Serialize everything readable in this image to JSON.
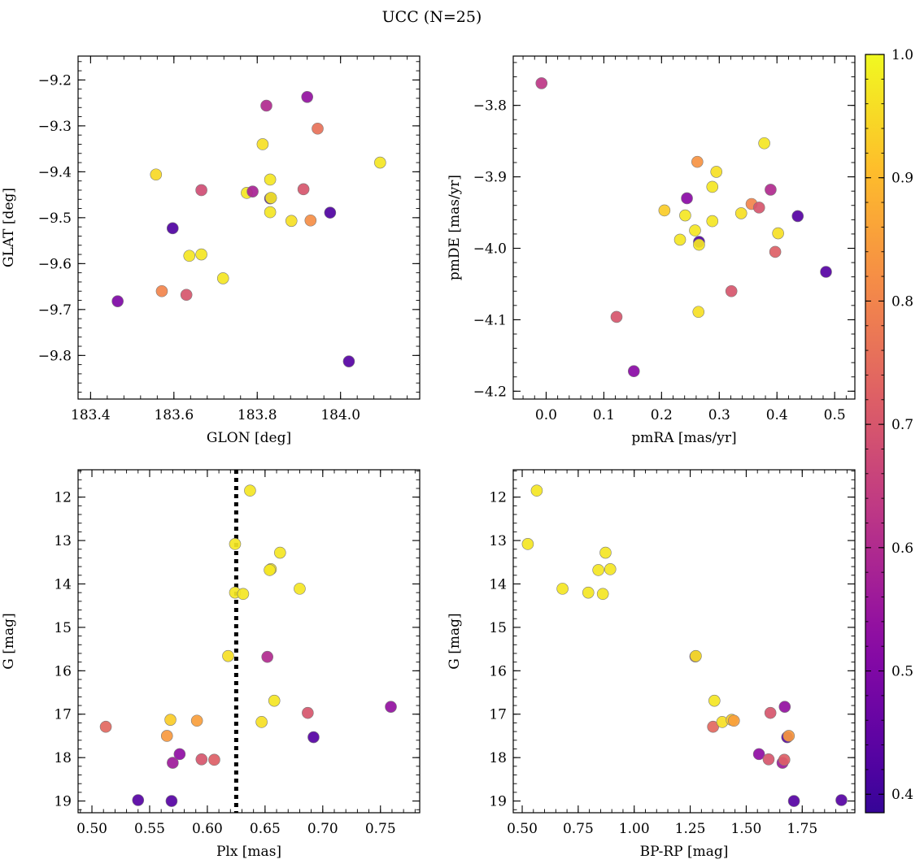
{
  "figure": {
    "title": "UCC (N=25)"
  },
  "colorbar": {
    "range": [
      0.385,
      1.0
    ],
    "ticks": [
      0.4,
      0.5,
      0.6,
      0.7,
      0.8,
      0.9,
      1.0
    ],
    "tick_labels": [
      "0.4",
      "0.5",
      "0.6",
      "0.7",
      "0.8",
      "0.9",
      "1.0"
    ],
    "colormap": "plasma"
  },
  "chart_data": [
    {
      "type": "scatter",
      "id": "glon-glat",
      "xlabel": "GLON [deg]",
      "ylabel": "GLAT [deg]",
      "xlim": [
        183.37,
        184.19
      ],
      "ylim": [
        -9.895,
        -9.148
      ],
      "xticks": [
        183.4,
        183.6,
        183.8,
        184.0
      ],
      "xtick_labels": [
        "183.4",
        "183.6",
        "183.8",
        "184.0"
      ],
      "yticks": [
        -9.2,
        -9.3,
        -9.4,
        -9.5,
        -9.6,
        -9.7,
        -9.8
      ],
      "ytick_labels": [
        "−9.2",
        "−9.3",
        "−9.4",
        "−9.5",
        "−9.6",
        "−9.7",
        "−9.8"
      ],
      "points": [
        {
          "x": 183.465,
          "y": -9.682,
          "c": 0.5
        },
        {
          "x": 183.557,
          "y": -9.406,
          "c": 0.95
        },
        {
          "x": 183.571,
          "y": -9.66,
          "c": 0.8
        },
        {
          "x": 183.597,
          "y": -9.523,
          "c": 0.42
        },
        {
          "x": 183.63,
          "y": -9.668,
          "c": 0.7
        },
        {
          "x": 183.637,
          "y": -9.583,
          "c": 0.97
        },
        {
          "x": 183.666,
          "y": -9.44,
          "c": 0.68
        },
        {
          "x": 183.666,
          "y": -9.58,
          "c": 0.97
        },
        {
          "x": 183.718,
          "y": -9.632,
          "c": 0.97
        },
        {
          "x": 183.775,
          "y": -9.446,
          "c": 0.97
        },
        {
          "x": 183.789,
          "y": -9.443,
          "c": 0.58
        },
        {
          "x": 183.813,
          "y": -9.34,
          "c": 0.96
        },
        {
          "x": 183.822,
          "y": -9.256,
          "c": 0.6
        },
        {
          "x": 183.831,
          "y": -9.417,
          "c": 0.97
        },
        {
          "x": 183.831,
          "y": -9.458,
          "c": 0.42
        },
        {
          "x": 183.833,
          "y": -9.457,
          "c": 0.97
        },
        {
          "x": 183.831,
          "y": -9.488,
          "c": 0.97
        },
        {
          "x": 183.882,
          "y": -9.507,
          "c": 0.96
        },
        {
          "x": 183.911,
          "y": -9.438,
          "c": 0.7
        },
        {
          "x": 183.92,
          "y": -9.237,
          "c": 0.54
        },
        {
          "x": 183.928,
          "y": -9.506,
          "c": 0.82
        },
        {
          "x": 183.945,
          "y": -9.306,
          "c": 0.76
        },
        {
          "x": 183.975,
          "y": -9.489,
          "c": 0.42
        },
        {
          "x": 184.02,
          "y": -9.813,
          "c": 0.43
        },
        {
          "x": 184.095,
          "y": -9.38,
          "c": 0.97
        }
      ]
    },
    {
      "type": "scatter",
      "id": "pmra-pmde",
      "xlabel": "pmRA [mas/yr]",
      "ylabel": "pmDE [mas/yr]",
      "xlim": [
        -0.057,
        0.535
      ],
      "ylim": [
        -4.211,
        -3.731
      ],
      "xticks": [
        0.0,
        0.1,
        0.2,
        0.3,
        0.4,
        0.5
      ],
      "xtick_labels": [
        "0.0",
        "0.1",
        "0.2",
        "0.3",
        "0.4",
        "0.5"
      ],
      "yticks": [
        -3.8,
        -3.9,
        -4.0,
        -4.1,
        -4.2
      ],
      "ytick_labels": [
        "−3.8",
        "−3.9",
        "−4.0",
        "−4.1",
        "−4.2"
      ],
      "points": [
        {
          "x": -0.008,
          "y": -3.769,
          "c": 0.63
        },
        {
          "x": 0.122,
          "y": -4.096,
          "c": 0.7
        },
        {
          "x": 0.152,
          "y": -4.172,
          "c": 0.52
        },
        {
          "x": 0.205,
          "y": -3.947,
          "c": 0.93
        },
        {
          "x": 0.232,
          "y": -3.988,
          "c": 0.97
        },
        {
          "x": 0.241,
          "y": -3.954,
          "c": 0.97
        },
        {
          "x": 0.244,
          "y": -3.93,
          "c": 0.52
        },
        {
          "x": 0.258,
          "y": -3.975,
          "c": 0.97
        },
        {
          "x": 0.262,
          "y": -3.879,
          "c": 0.83
        },
        {
          "x": 0.265,
          "y": -3.991,
          "c": 0.42
        },
        {
          "x": 0.265,
          "y": -3.995,
          "c": 0.97
        },
        {
          "x": 0.264,
          "y": -4.089,
          "c": 0.96
        },
        {
          "x": 0.288,
          "y": -3.914,
          "c": 0.97
        },
        {
          "x": 0.288,
          "y": -3.962,
          "c": 0.97
        },
        {
          "x": 0.295,
          "y": -3.893,
          "c": 0.96
        },
        {
          "x": 0.321,
          "y": -4.06,
          "c": 0.7
        },
        {
          "x": 0.338,
          "y": -3.951,
          "c": 0.96
        },
        {
          "x": 0.356,
          "y": -3.938,
          "c": 0.8
        },
        {
          "x": 0.369,
          "y": -3.943,
          "c": 0.7
        },
        {
          "x": 0.378,
          "y": -3.853,
          "c": 0.97
        },
        {
          "x": 0.389,
          "y": -3.918,
          "c": 0.6
        },
        {
          "x": 0.397,
          "y": -4.005,
          "c": 0.72
        },
        {
          "x": 0.402,
          "y": -3.979,
          "c": 0.96
        },
        {
          "x": 0.436,
          "y": -3.955,
          "c": 0.43
        },
        {
          "x": 0.485,
          "y": -4.033,
          "c": 0.43
        }
      ]
    },
    {
      "type": "scatter",
      "id": "plx-g",
      "xlabel": "Plx [mas]",
      "ylabel": "G [mag]",
      "xlim": [
        0.488,
        0.784
      ],
      "ylim": [
        19.27,
        11.37
      ],
      "xticks": [
        0.5,
        0.55,
        0.6,
        0.65,
        0.7,
        0.75
      ],
      "xtick_labels": [
        "0.50",
        "0.55",
        "0.60",
        "0.65",
        "0.70",
        "0.75"
      ],
      "yticks": [
        12,
        13,
        14,
        15,
        16,
        17,
        18,
        19
      ],
      "ytick_labels": [
        "12",
        "13",
        "14",
        "15",
        "16",
        "17",
        "18",
        "19"
      ],
      "vline": {
        "x": 0.625,
        "style": "dotted"
      },
      "points": [
        {
          "x": 0.512,
          "y": 17.29,
          "c": 0.74
        },
        {
          "x": 0.54,
          "y": 18.98,
          "c": 0.43
        },
        {
          "x": 0.565,
          "y": 17.5,
          "c": 0.84
        },
        {
          "x": 0.568,
          "y": 17.13,
          "c": 0.93
        },
        {
          "x": 0.569,
          "y": 19.0,
          "c": 0.43
        },
        {
          "x": 0.57,
          "y": 18.12,
          "c": 0.56
        },
        {
          "x": 0.576,
          "y": 17.92,
          "c": 0.53
        },
        {
          "x": 0.591,
          "y": 17.15,
          "c": 0.85
        },
        {
          "x": 0.595,
          "y": 18.04,
          "c": 0.7
        },
        {
          "x": 0.606,
          "y": 18.05,
          "c": 0.72
        },
        {
          "x": 0.618,
          "y": 15.66,
          "c": 0.96
        },
        {
          "x": 0.624,
          "y": 13.08,
          "c": 0.97
        },
        {
          "x": 0.624,
          "y": 14.2,
          "c": 0.97
        },
        {
          "x": 0.631,
          "y": 14.23,
          "c": 0.97
        },
        {
          "x": 0.637,
          "y": 11.85,
          "c": 0.97
        },
        {
          "x": 0.647,
          "y": 17.18,
          "c": 0.96
        },
        {
          "x": 0.652,
          "y": 15.68,
          "c": 0.6
        },
        {
          "x": 0.655,
          "y": 13.66,
          "c": 0.97
        },
        {
          "x": 0.654,
          "y": 13.68,
          "c": 0.97
        },
        {
          "x": 0.658,
          "y": 16.69,
          "c": 0.97
        },
        {
          "x": 0.663,
          "y": 13.28,
          "c": 0.97
        },
        {
          "x": 0.68,
          "y": 14.11,
          "c": 0.97
        },
        {
          "x": 0.687,
          "y": 16.97,
          "c": 0.7
        },
        {
          "x": 0.692,
          "y": 17.53,
          "c": 0.43
        },
        {
          "x": 0.759,
          "y": 16.83,
          "c": 0.54
        }
      ]
    },
    {
      "type": "scatter",
      "id": "bprp-g",
      "xlabel": "BP-RP [mag]",
      "ylabel": "G [mag]",
      "xlim": [
        0.46,
        1.985
      ],
      "ylim": [
        19.27,
        11.37
      ],
      "xticks": [
        0.5,
        0.75,
        1.0,
        1.25,
        1.5,
        1.75
      ],
      "xtick_labels": [
        "0.50",
        "0.75",
        "1.00",
        "1.25",
        "1.50",
        "1.75"
      ],
      "yticks": [
        12,
        13,
        14,
        15,
        16,
        17,
        18,
        19
      ],
      "ytick_labels": [
        "12",
        "13",
        "14",
        "15",
        "16",
        "17",
        "18",
        "19"
      ],
      "points": [
        {
          "x": 0.525,
          "y": 13.08,
          "c": 0.97
        },
        {
          "x": 0.565,
          "y": 11.85,
          "c": 0.97
        },
        {
          "x": 0.68,
          "y": 14.11,
          "c": 0.97
        },
        {
          "x": 0.795,
          "y": 14.2,
          "c": 0.97
        },
        {
          "x": 0.84,
          "y": 13.68,
          "c": 0.97
        },
        {
          "x": 0.86,
          "y": 14.23,
          "c": 0.97
        },
        {
          "x": 0.872,
          "y": 13.28,
          "c": 0.97
        },
        {
          "x": 0.893,
          "y": 13.66,
          "c": 0.97
        },
        {
          "x": 1.273,
          "y": 15.67,
          "c": 0.6
        },
        {
          "x": 1.275,
          "y": 15.66,
          "c": 0.96
        },
        {
          "x": 1.352,
          "y": 17.29,
          "c": 0.74
        },
        {
          "x": 1.358,
          "y": 16.69,
          "c": 0.97
        },
        {
          "x": 1.393,
          "y": 17.18,
          "c": 0.96
        },
        {
          "x": 1.435,
          "y": 17.13,
          "c": 0.93
        },
        {
          "x": 1.445,
          "y": 17.15,
          "c": 0.85
        },
        {
          "x": 1.557,
          "y": 17.92,
          "c": 0.53
        },
        {
          "x": 1.6,
          "y": 18.04,
          "c": 0.7
        },
        {
          "x": 1.608,
          "y": 16.97,
          "c": 0.7
        },
        {
          "x": 1.662,
          "y": 18.12,
          "c": 0.56
        },
        {
          "x": 1.67,
          "y": 18.05,
          "c": 0.72
        },
        {
          "x": 1.672,
          "y": 16.83,
          "c": 0.54
        },
        {
          "x": 1.683,
          "y": 17.53,
          "c": 0.43
        },
        {
          "x": 1.69,
          "y": 17.5,
          "c": 0.84
        },
        {
          "x": 1.713,
          "y": 19.0,
          "c": 0.43
        },
        {
          "x": 1.925,
          "y": 18.98,
          "c": 0.43
        }
      ]
    }
  ]
}
